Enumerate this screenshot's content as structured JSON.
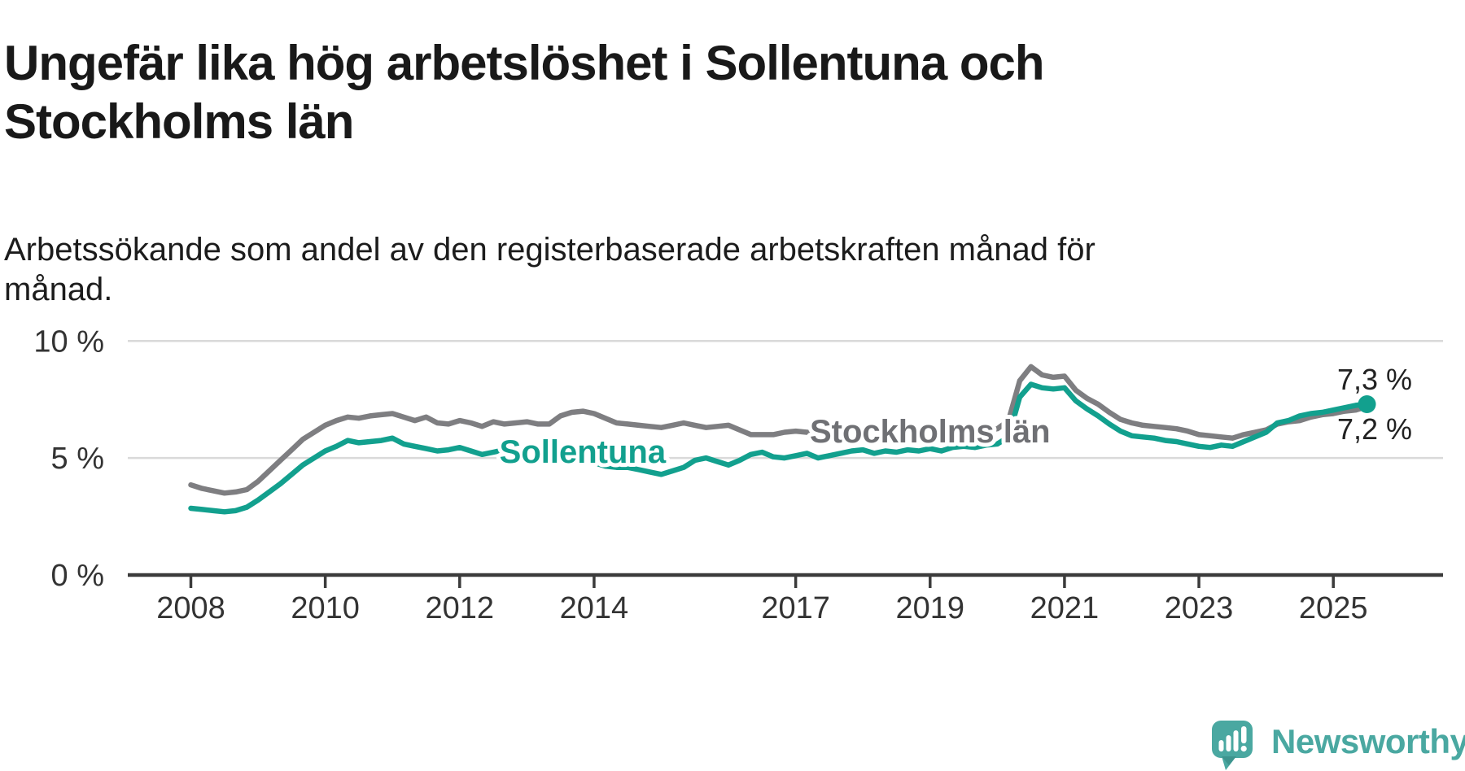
{
  "page": {
    "background": "#ffffff"
  },
  "header": {
    "title_line1": "Ungefär lika hög arbetslöshet i Sollentuna och",
    "title_line2": "Stockholms län",
    "subtitle_line1": "Arbetssökande som andel av den registerbaserade arbetskraften månad för",
    "subtitle_line2": "månad."
  },
  "chart": {
    "y_axis_ticks": [
      {
        "value": 10,
        "label": "10 %"
      },
      {
        "value": 5,
        "label": "5 %"
      },
      {
        "value": 0,
        "label": "0 %"
      }
    ],
    "x_axis_ticks": [
      {
        "year": 2008,
        "label": "2008"
      },
      {
        "year": 2010,
        "label": "2010"
      },
      {
        "year": 2012,
        "label": "2012"
      },
      {
        "year": 2014,
        "label": "2014"
      },
      {
        "year": 2017,
        "label": "2017"
      },
      {
        "year": 2019,
        "label": "2019"
      },
      {
        "year": 2021,
        "label": "2021"
      },
      {
        "year": 2023,
        "label": "2023"
      },
      {
        "year": 2025,
        "label": "2025"
      }
    ],
    "series_annotations": [
      {
        "series": "Stockholms län",
        "text": "Stockholms län",
        "x_year": 2019.0,
        "y_value": 6.15,
        "color": "#6f7074"
      },
      {
        "series": "Sollentuna",
        "text": "Sollentuna",
        "x_year": 2013.83,
        "y_value": 5.28,
        "color": "#12a08e"
      }
    ],
    "end_value_labels": [
      {
        "text": "7,3 %",
        "series": "Sollentuna"
      },
      {
        "text": "7,2 %",
        "series": "Stockholms län"
      }
    ],
    "colors": {
      "grid": "#d9d9d9",
      "axis": "#3b3b3b",
      "tick_label": "#333333"
    }
  },
  "chart_data": {
    "type": "line",
    "title": "Ungefär lika hög arbetslöshet i Sollentuna och Stockholms län",
    "subtitle": "Arbetssökande som andel av den registerbaserade arbetskraften månad för månad.",
    "unit": "%",
    "x_start_year": 2008.0,
    "x_step_years": 0.16667,
    "x_end_year": 2025.5,
    "x_tick_labels": [
      "2008",
      "2010",
      "2012",
      "2014",
      "2017",
      "2019",
      "2021",
      "2023",
      "2025"
    ],
    "ylim": [
      0,
      10.6
    ],
    "y_ticks": [
      0,
      5,
      10
    ],
    "grid": "horizontal",
    "legend": "inline-labels",
    "series": [
      {
        "name": "Stockholms län",
        "color": "#7e7e81",
        "final_label": "7,2 %",
        "end_dot": false,
        "values": [
          3.85,
          3.7,
          3.6,
          3.5,
          3.55,
          3.65,
          4.0,
          4.45,
          4.9,
          5.35,
          5.8,
          6.1,
          6.4,
          6.6,
          6.75,
          6.7,
          6.8,
          6.85,
          6.9,
          6.75,
          6.6,
          6.75,
          6.5,
          6.45,
          6.6,
          6.5,
          6.35,
          6.55,
          6.45,
          6.5,
          6.55,
          6.45,
          6.45,
          6.8,
          6.95,
          7.0,
          6.9,
          6.7,
          6.5,
          6.45,
          6.4,
          6.35,
          6.3,
          6.4,
          6.5,
          6.4,
          6.3,
          6.35,
          6.4,
          6.2,
          6.0,
          6.0,
          6.0,
          6.1,
          6.15,
          6.1,
          6.05,
          6.05,
          6.1,
          6.1,
          6.15,
          6.2,
          6.15,
          6.1,
          6.15,
          6.2,
          6.2,
          6.15,
          6.1,
          6.15,
          6.2,
          6.2,
          6.25,
          6.6,
          8.3,
          8.9,
          8.55,
          8.45,
          8.5,
          7.9,
          7.55,
          7.3,
          6.95,
          6.65,
          6.5,
          6.4,
          6.35,
          6.3,
          6.25,
          6.15,
          6.0,
          5.95,
          5.9,
          5.85,
          6.0,
          6.1,
          6.2,
          6.45,
          6.55,
          6.6,
          6.75,
          6.85,
          6.9,
          7.0,
          7.05,
          7.2
        ]
      },
      {
        "name": "Sollentuna",
        "color": "#12a08e",
        "final_label": "7,3 %",
        "end_dot": true,
        "values": [
          2.85,
          2.8,
          2.75,
          2.7,
          2.75,
          2.9,
          3.2,
          3.55,
          3.9,
          4.3,
          4.7,
          5.0,
          5.3,
          5.5,
          5.75,
          5.65,
          5.7,
          5.75,
          5.85,
          5.6,
          5.5,
          5.4,
          5.3,
          5.35,
          5.45,
          5.3,
          5.15,
          5.25,
          5.35,
          5.25,
          5.3,
          5.25,
          5.3,
          5.4,
          5.35,
          5.1,
          4.8,
          4.65,
          4.6,
          4.6,
          4.5,
          4.4,
          4.3,
          4.45,
          4.6,
          4.9,
          5.0,
          4.85,
          4.7,
          4.9,
          5.15,
          5.25,
          5.05,
          5.0,
          5.1,
          5.2,
          5.0,
          5.1,
          5.2,
          5.3,
          5.35,
          5.2,
          5.3,
          5.25,
          5.35,
          5.3,
          5.4,
          5.3,
          5.45,
          5.5,
          5.45,
          5.55,
          5.6,
          5.9,
          7.6,
          8.15,
          8.0,
          7.95,
          8.0,
          7.45,
          7.1,
          6.8,
          6.45,
          6.15,
          5.95,
          5.9,
          5.85,
          5.75,
          5.7,
          5.6,
          5.5,
          5.45,
          5.55,
          5.5,
          5.7,
          5.9,
          6.1,
          6.5,
          6.6,
          6.8,
          6.9,
          6.95,
          7.05,
          7.15,
          7.25,
          7.3
        ]
      }
    ]
  },
  "branding": {
    "logo_text": "Newsworthy",
    "logo_color": "#4aa8a1",
    "logo_icon": "speech-bubble-bar-chart-icon"
  }
}
